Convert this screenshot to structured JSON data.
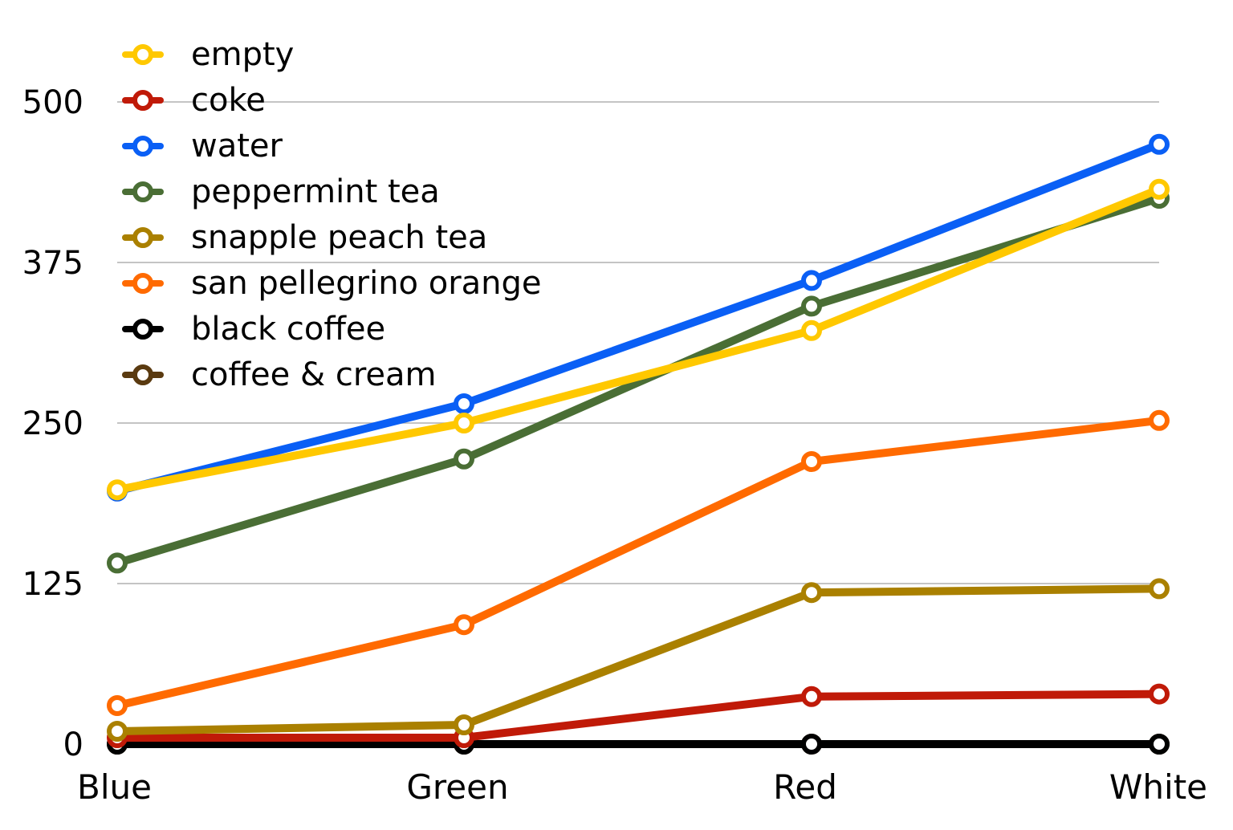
{
  "chart_data": {
    "type": "line",
    "categories": [
      "Blue",
      "Green",
      "Red",
      "White"
    ],
    "ylim": [
      0,
      500
    ],
    "yticks": [
      "0",
      "125",
      "250",
      "375",
      "500"
    ],
    "ytick_values": [
      0,
      125,
      250,
      375,
      500
    ],
    "grid": true,
    "legend_placement": "top-left",
    "series": [
      {
        "name": "empty",
        "color": "#ffc800",
        "values": [
          198,
          250,
          322,
          432
        ]
      },
      {
        "name": "coke",
        "color": "#c01a08",
        "values": [
          5,
          5,
          37,
          39
        ]
      },
      {
        "name": "water",
        "color": "#0a5ff5",
        "values": [
          197,
          265,
          361,
          467
        ]
      },
      {
        "name": "peppermint tea",
        "color": "#4a6e35",
        "values": [
          141,
          222,
          341,
          425
        ]
      },
      {
        "name": "snapple peach tea",
        "color": "#aa8000",
        "values": [
          10,
          15,
          118,
          121
        ]
      },
      {
        "name": "san pellegrino orange",
        "color": "#ff6a00",
        "values": [
          30,
          93,
          220,
          252
        ]
      },
      {
        "name": "black coffee",
        "color": "#000000",
        "values": [
          0,
          0,
          0,
          0
        ]
      },
      {
        "name": "coffee & cream",
        "color": "#5a3a10",
        "values": [
          0,
          0,
          0,
          0
        ]
      }
    ],
    "draw_order": [
      7,
      6,
      1,
      4,
      5,
      3,
      2,
      0
    ]
  }
}
